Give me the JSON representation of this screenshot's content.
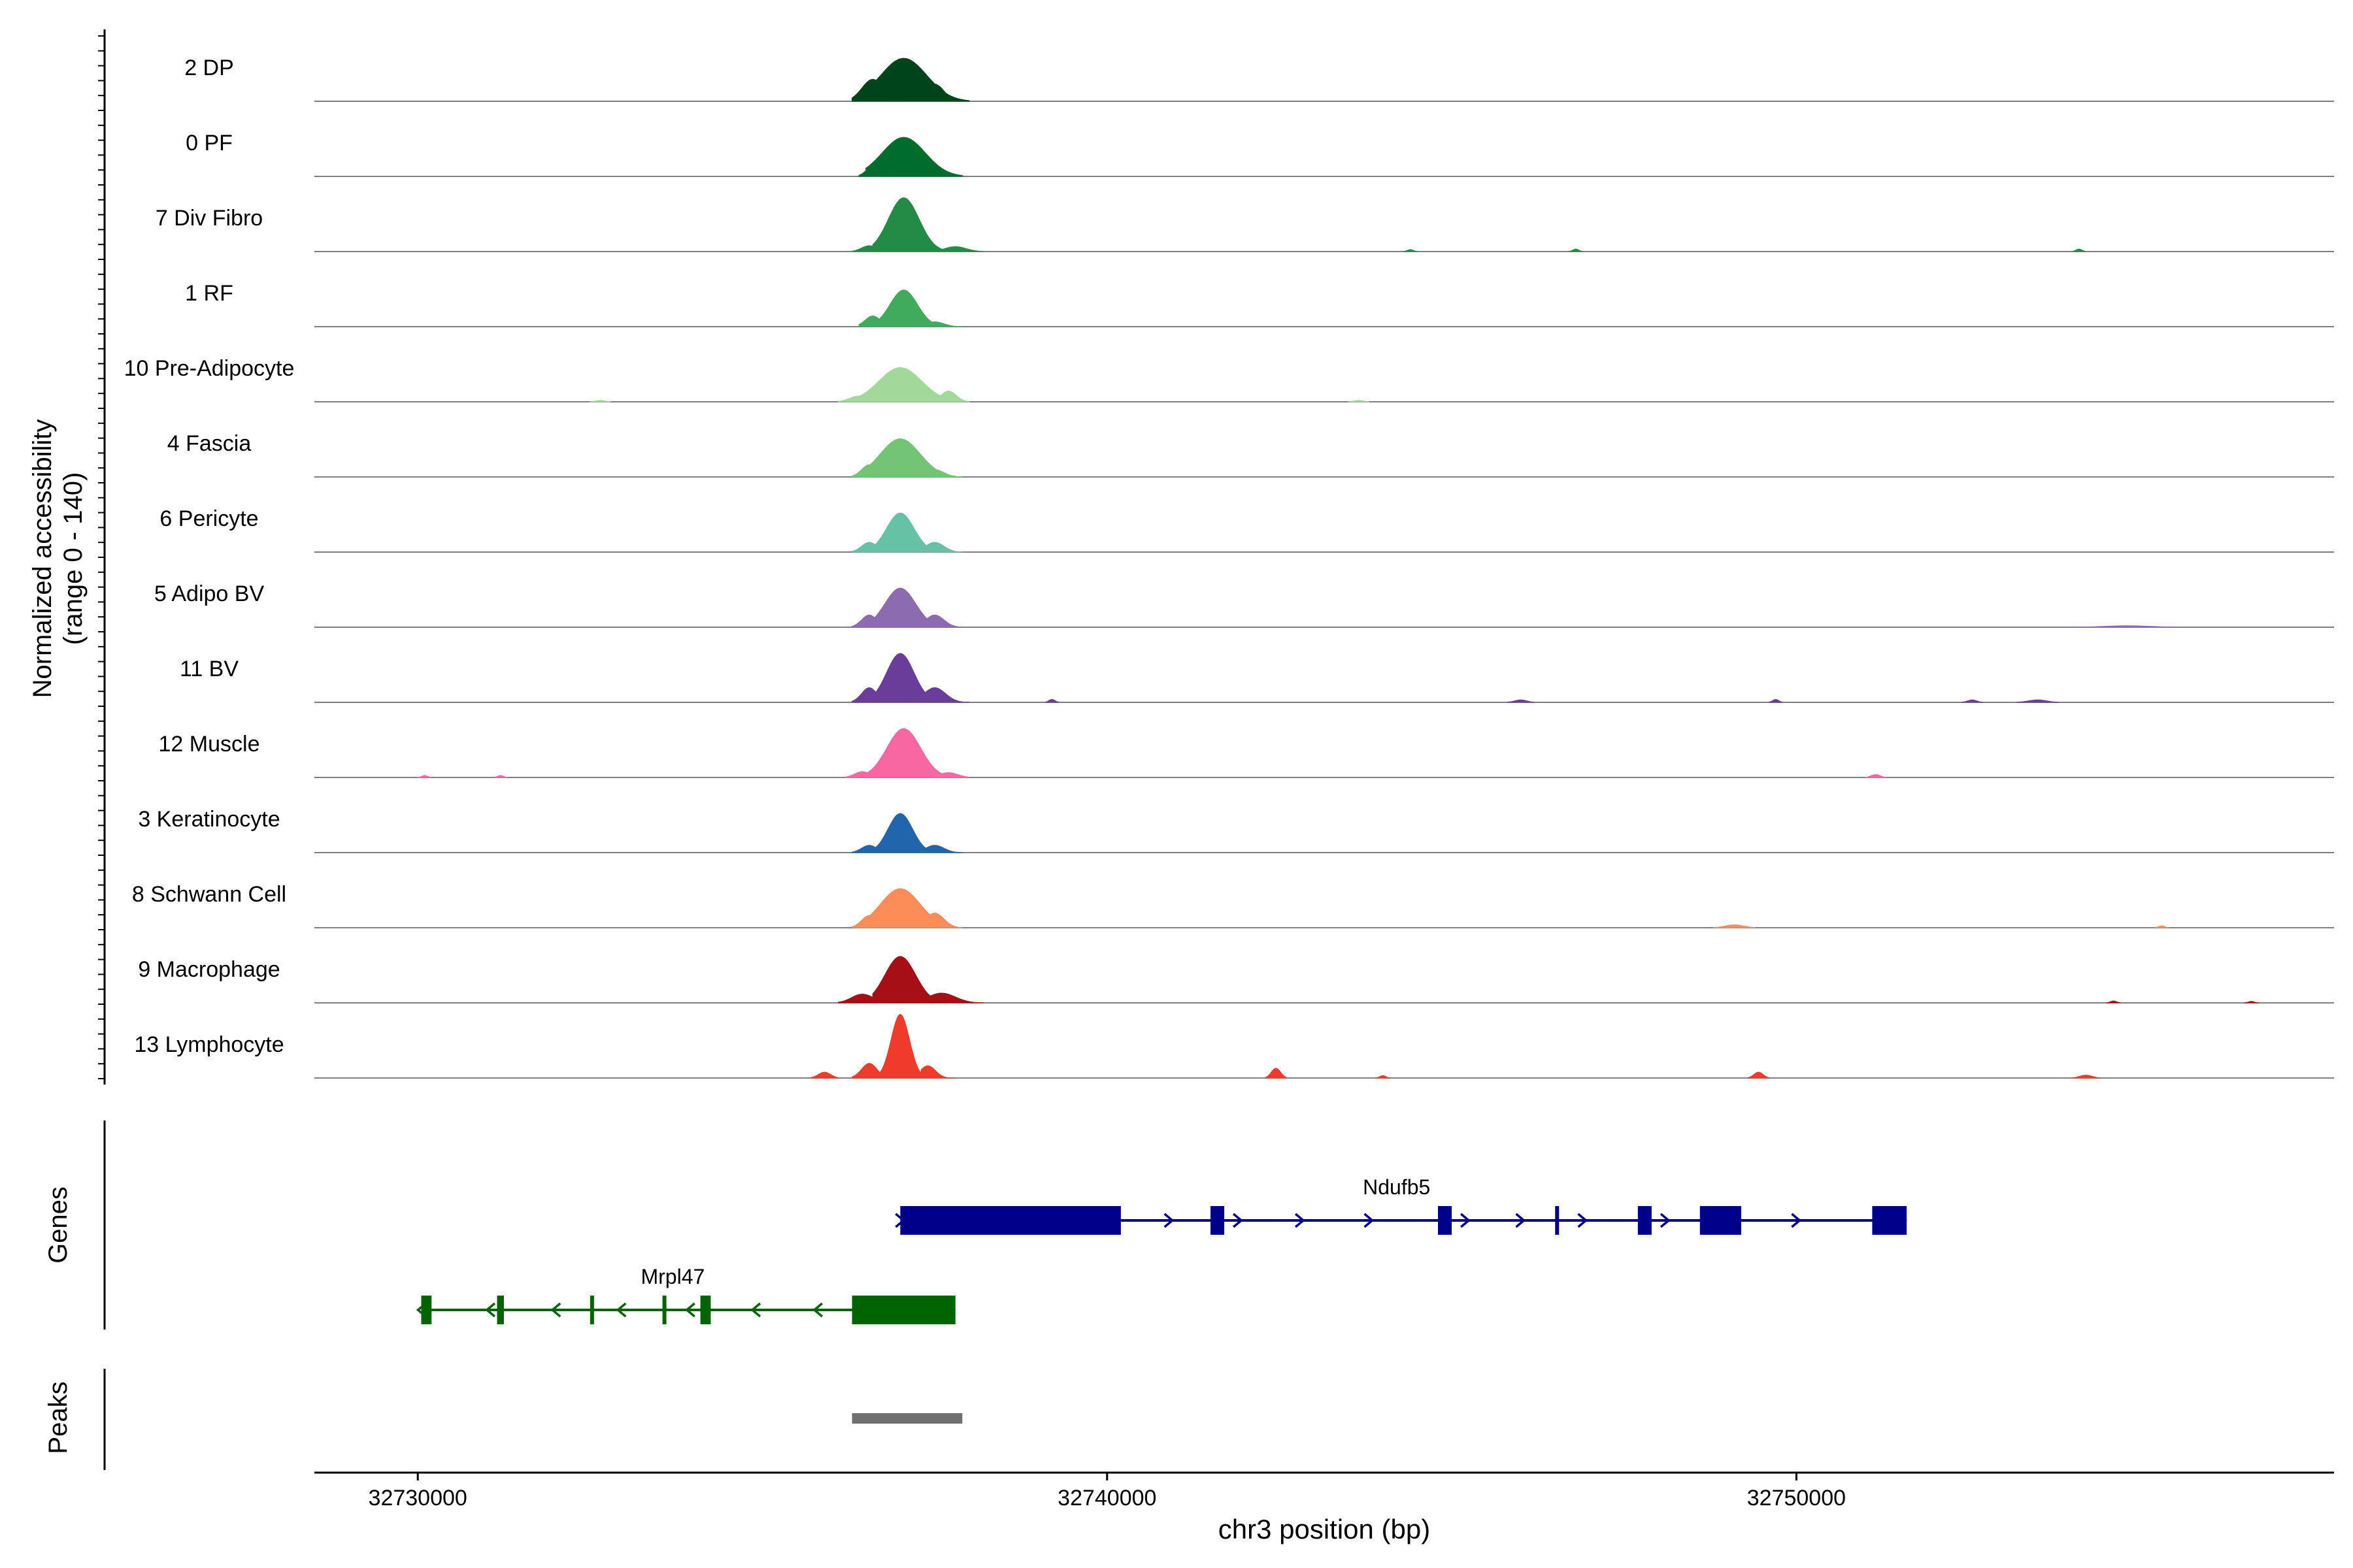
{
  "chart_data": {
    "type": "area",
    "title": "",
    "ylabel": "Normalized accessibility",
    "ylabel_range": "(range 0 - 140)",
    "yrange": [
      0,
      140
    ],
    "xlabel": "chr3 position (bp)",
    "xlim": [
      32728500,
      32757800
    ],
    "xticks": [
      32730000,
      32740000,
      32750000
    ],
    "tracks": [
      {
        "name": "2 DP",
        "color": "#00441b",
        "peaks": [
          {
            "start": 32736500,
            "end": 32738000,
            "center": 32737050,
            "height": 88
          },
          {
            "start": 32736300,
            "end": 32737000,
            "center": 32736600,
            "height": 45
          },
          {
            "start": 32737300,
            "end": 32737900,
            "center": 32737500,
            "height": 35
          }
        ]
      },
      {
        "name": "0 PF",
        "color": "#006d2c",
        "peaks": [
          {
            "start": 32736500,
            "end": 32737900,
            "center": 32737050,
            "height": 80
          },
          {
            "start": 32736400,
            "end": 32736900,
            "center": 32736650,
            "height": 30
          },
          {
            "start": 32737300,
            "end": 32737900,
            "center": 32737500,
            "height": 20
          }
        ]
      },
      {
        "name": "7 Div Fibro",
        "color": "#238b45",
        "peaks": [
          {
            "start": 32736600,
            "end": 32737600,
            "center": 32737050,
            "height": 110
          },
          {
            "start": 32736300,
            "end": 32736800,
            "center": 32736550,
            "height": 12
          },
          {
            "start": 32737500,
            "end": 32738200,
            "center": 32737800,
            "height": 10
          },
          {
            "start": 32744300,
            "end": 32744500,
            "center": 32744400,
            "height": 4
          },
          {
            "start": 32746700,
            "end": 32746900,
            "center": 32746800,
            "height": 5
          },
          {
            "start": 32754000,
            "end": 32754200,
            "center": 32754100,
            "height": 5
          }
        ]
      },
      {
        "name": "1 RF",
        "color": "#41ab5d",
        "peaks": [
          {
            "start": 32736600,
            "end": 32737500,
            "center": 32737050,
            "height": 75
          },
          {
            "start": 32736400,
            "end": 32736900,
            "center": 32736600,
            "height": 22
          },
          {
            "start": 32737300,
            "end": 32737900,
            "center": 32737500,
            "height": 10
          }
        ]
      },
      {
        "name": "10 Pre-Adipocyte",
        "color": "#a1d99b",
        "peaks": [
          {
            "start": 32736400,
            "end": 32737800,
            "center": 32737000,
            "height": 70
          },
          {
            "start": 32736100,
            "end": 32736700,
            "center": 32736400,
            "height": 12
          },
          {
            "start": 32737500,
            "end": 32738000,
            "center": 32737700,
            "height": 22
          },
          {
            "start": 32732500,
            "end": 32732800,
            "center": 32732650,
            "height": 3
          },
          {
            "start": 32743500,
            "end": 32743800,
            "center": 32743650,
            "height": 3
          }
        ]
      },
      {
        "name": "4 Fascia",
        "color": "#74c476",
        "peaks": [
          {
            "start": 32736500,
            "end": 32737800,
            "center": 32737000,
            "height": 78
          },
          {
            "start": 32736300,
            "end": 32736800,
            "center": 32736550,
            "height": 25
          },
          {
            "start": 32737300,
            "end": 32737900,
            "center": 32737500,
            "height": 15
          }
        ]
      },
      {
        "name": "6 Pericyte",
        "color": "#66c2a4",
        "peaks": [
          {
            "start": 32736600,
            "end": 32737500,
            "center": 32737000,
            "height": 80
          },
          {
            "start": 32736300,
            "end": 32736800,
            "center": 32736550,
            "height": 20
          },
          {
            "start": 32737300,
            "end": 32737900,
            "center": 32737500,
            "height": 20
          }
        ]
      },
      {
        "name": "5 Adipo BV",
        "color": "#8c6bb1",
        "peaks": [
          {
            "start": 32736600,
            "end": 32737600,
            "center": 32737000,
            "height": 80
          },
          {
            "start": 32736300,
            "end": 32736800,
            "center": 32736550,
            "height": 25
          },
          {
            "start": 32737300,
            "end": 32737900,
            "center": 32737500,
            "height": 25
          },
          {
            "start": 32754000,
            "end": 32755500,
            "center": 32754800,
            "height": 3
          }
        ]
      },
      {
        "name": "11 BV",
        "color": "#6a3d9a",
        "peaks": [
          {
            "start": 32736600,
            "end": 32737500,
            "center": 32737000,
            "height": 100
          },
          {
            "start": 32736300,
            "end": 32736800,
            "center": 32736550,
            "height": 30
          },
          {
            "start": 32737300,
            "end": 32738000,
            "center": 32737500,
            "height": 30
          },
          {
            "start": 32739100,
            "end": 32739300,
            "center": 32739200,
            "height": 6
          },
          {
            "start": 32745800,
            "end": 32746200,
            "center": 32746000,
            "height": 5
          },
          {
            "start": 32749600,
            "end": 32749800,
            "center": 32749700,
            "height": 6
          },
          {
            "start": 32752400,
            "end": 32752700,
            "center": 32752550,
            "height": 5
          },
          {
            "start": 32753200,
            "end": 32753800,
            "center": 32753500,
            "height": 5
          }
        ]
      },
      {
        "name": "12 Muscle",
        "color": "#f768a1",
        "peaks": [
          {
            "start": 32736500,
            "end": 32737600,
            "center": 32737050,
            "height": 100
          },
          {
            "start": 32736200,
            "end": 32736700,
            "center": 32736450,
            "height": 12
          },
          {
            "start": 32737400,
            "end": 32738000,
            "center": 32737700,
            "height": 10
          },
          {
            "start": 32730000,
            "end": 32730200,
            "center": 32730100,
            "height": 4
          },
          {
            "start": 32731100,
            "end": 32731300,
            "center": 32731200,
            "height": 4
          },
          {
            "start": 32751000,
            "end": 32751300,
            "center": 32751150,
            "height": 6
          }
        ]
      },
      {
        "name": "3 Keratinocyte",
        "color": "#2166ac",
        "peaks": [
          {
            "start": 32736600,
            "end": 32737400,
            "center": 32737000,
            "height": 80
          },
          {
            "start": 32736300,
            "end": 32736800,
            "center": 32736550,
            "height": 15
          },
          {
            "start": 32737300,
            "end": 32737900,
            "center": 32737500,
            "height": 15
          }
        ]
      },
      {
        "name": "8 Schwann Cell",
        "color": "#fc8d59",
        "peaks": [
          {
            "start": 32736500,
            "end": 32737800,
            "center": 32737000,
            "height": 80
          },
          {
            "start": 32736300,
            "end": 32736800,
            "center": 32736550,
            "height": 25
          },
          {
            "start": 32737300,
            "end": 32737900,
            "center": 32737500,
            "height": 30
          },
          {
            "start": 32748800,
            "end": 32749400,
            "center": 32749100,
            "height": 6
          },
          {
            "start": 32755200,
            "end": 32755400,
            "center": 32755300,
            "height": 4
          }
        ]
      },
      {
        "name": "9 Macrophage",
        "color": "#a50f15",
        "peaks": [
          {
            "start": 32736600,
            "end": 32737600,
            "center": 32737000,
            "height": 95
          },
          {
            "start": 32736100,
            "end": 32736800,
            "center": 32736450,
            "height": 18
          },
          {
            "start": 32737300,
            "end": 32738200,
            "center": 32737600,
            "height": 20
          },
          {
            "start": 32754500,
            "end": 32754700,
            "center": 32754600,
            "height": 4
          },
          {
            "start": 32756500,
            "end": 32756700,
            "center": 32756600,
            "height": 3
          }
        ]
      },
      {
        "name": "13 Lymphocyte",
        "color": "#ef3b2c",
        "peaks": [
          {
            "start": 32736700,
            "end": 32737300,
            "center": 32737000,
            "height": 130
          },
          {
            "start": 32736300,
            "end": 32736800,
            "center": 32736550,
            "height": 30
          },
          {
            "start": 32737300,
            "end": 32737800,
            "center": 32737400,
            "height": 25
          },
          {
            "start": 32735700,
            "end": 32736100,
            "center": 32735900,
            "height": 12
          },
          {
            "start": 32742300,
            "end": 32742600,
            "center": 32742450,
            "height": 20
          },
          {
            "start": 32743900,
            "end": 32744100,
            "center": 32744000,
            "height": 5
          },
          {
            "start": 32749300,
            "end": 32749600,
            "center": 32749450,
            "height": 12
          },
          {
            "start": 32754000,
            "end": 32754400,
            "center": 32754200,
            "height": 6
          }
        ]
      }
    ],
    "genes_label": "Genes",
    "genes": [
      {
        "name": "Ndufb5",
        "strand": "+",
        "color": "#00008b",
        "start": 32737000,
        "end": 32751600,
        "label_pos": 32744200,
        "exons": [
          [
            32737000,
            32740200
          ],
          [
            32741500,
            32741700
          ],
          [
            32744800,
            32745000
          ],
          [
            32746500,
            32746550
          ],
          [
            32747700,
            32747900
          ],
          [
            32748600,
            32749200
          ],
          [
            32751100,
            32751600
          ]
        ],
        "arrows": [
          32737000,
          32740900,
          32741900,
          32742800,
          32743800,
          32745200,
          32746000,
          32746900,
          32748100,
          32750000
        ]
      },
      {
        "name": "Mrpl47",
        "strand": "-",
        "color": "#006400",
        "start": 32730050,
        "end": 32737800,
        "label_pos": 32733700,
        "exons": [
          [
            32730050,
            32730200
          ],
          [
            32731150,
            32731250
          ],
          [
            32732500,
            32732550
          ],
          [
            32733550,
            32733600
          ],
          [
            32734100,
            32734250
          ],
          [
            32736300,
            32737800
          ]
        ],
        "arrows": [
          32730050,
          32731050,
          32732000,
          32732950,
          32733950,
          32734900,
          32735800
        ]
      }
    ],
    "peaks_label": "Peaks",
    "peak_regions": [
      {
        "start": 32736300,
        "end": 32737900,
        "color": "#707070"
      }
    ]
  }
}
